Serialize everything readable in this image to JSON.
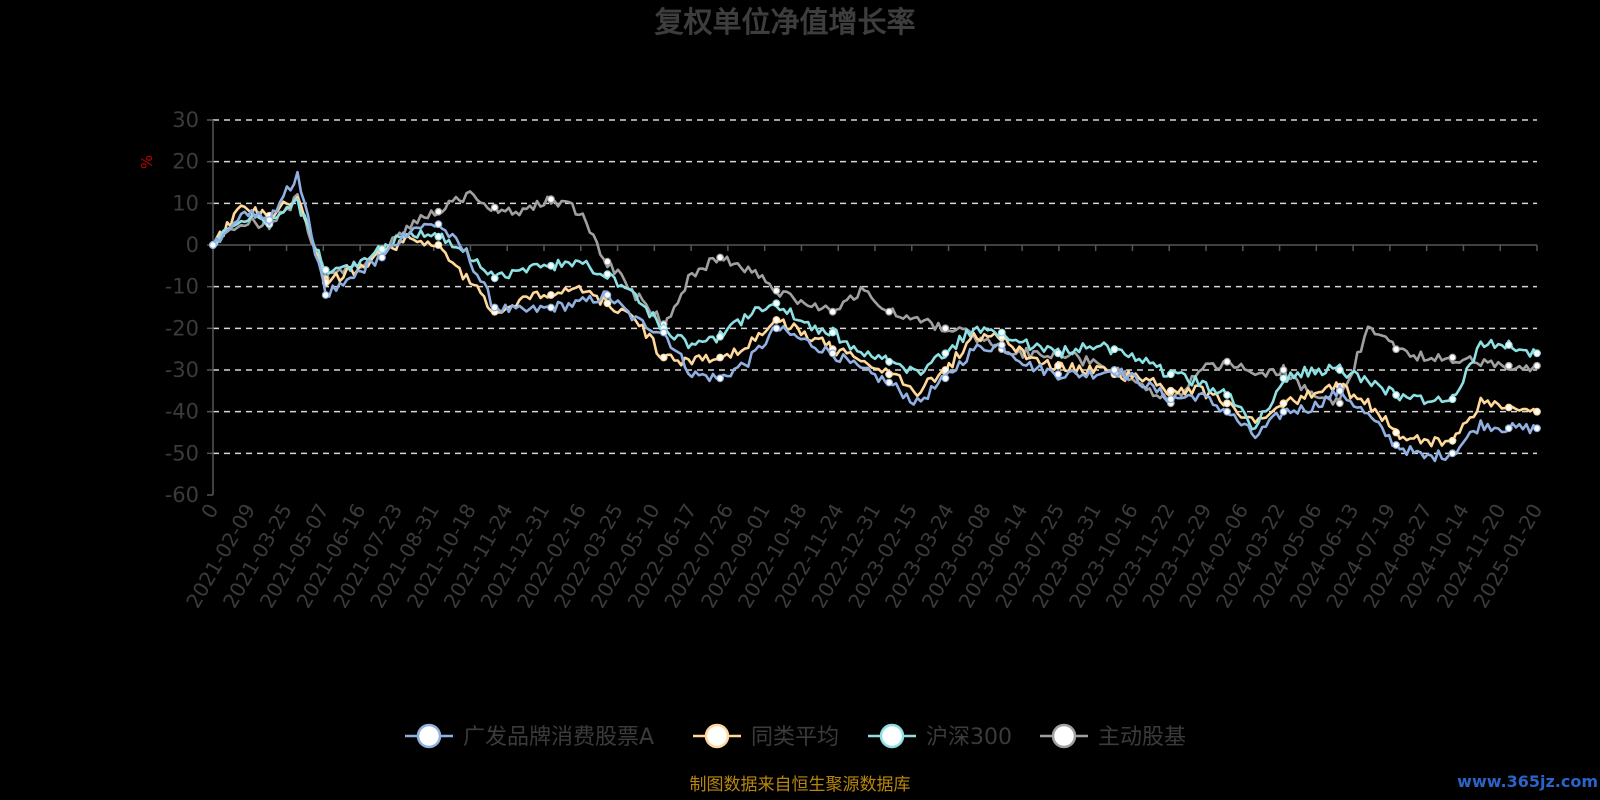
{
  "chart_data": {
    "type": "line",
    "title": "复权单位净值增长率",
    "ylabel": "%",
    "ylim": [
      -60,
      30
    ],
    "yticks": [
      30,
      20,
      10,
      0,
      -10,
      -20,
      -30,
      -40,
      -50,
      -60
    ],
    "grid": true,
    "legend_position": "bottom",
    "xticks": [
      "0",
      "2021-02-09",
      "2021-03-25",
      "2021-05-07",
      "2021-06-16",
      "2021-07-23",
      "2021-08-31",
      "2021-10-18",
      "2021-11-24",
      "2021-12-31",
      "2022-02-16",
      "2022-03-25",
      "2022-05-10",
      "2022-06-17",
      "2022-07-26",
      "2022-09-01",
      "2022-10-18",
      "2022-11-24",
      "2022-12-31",
      "2023-02-15",
      "2023-03-24",
      "2023-05-08",
      "2023-06-14",
      "2023-07-25",
      "2023-08-31",
      "2023-10-16",
      "2023-11-22",
      "2023-12-29",
      "2024-02-06",
      "2024-03-22",
      "2024-05-06",
      "2024-06-13",
      "2024-07-19",
      "2024-08-27",
      "2024-10-14",
      "2024-11-20",
      "2025-01-20"
    ],
    "series": [
      {
        "name": "广发品牌消费股票A",
        "color": "#8fb0e0",
        "values": [
          0,
          8,
          6,
          17,
          -12,
          -7,
          -3,
          4,
          5,
          -2,
          -15,
          -16,
          -15,
          -14,
          -12,
          -18,
          -21,
          -31,
          -32,
          -28,
          -20,
          -23,
          -26,
          -30,
          -33,
          -38,
          -32,
          -25,
          -24,
          -29,
          -31,
          -31,
          -30,
          -33,
          -37,
          -36,
          -40,
          -46,
          -40,
          -39,
          -35,
          -41,
          -48,
          -51,
          -50,
          -43,
          -44,
          -44
        ]
      },
      {
        "name": "同类平均",
        "color": "#ffd89a",
        "values": [
          0,
          9,
          7,
          12,
          -9,
          -6,
          -2,
          2,
          0,
          -8,
          -16,
          -13,
          -12,
          -10,
          -14,
          -18,
          -27,
          -28,
          -27,
          -24,
          -18,
          -21,
          -25,
          -28,
          -31,
          -35,
          -30,
          -22,
          -22,
          -27,
          -29,
          -30,
          -31,
          -32,
          -35,
          -35,
          -38,
          -43,
          -38,
          -36,
          -34,
          -38,
          -45,
          -47,
          -47,
          -38,
          -39,
          -40
        ]
      },
      {
        "name": "沪深300",
        "color": "#8ee0e4",
        "values": [
          0,
          7,
          5,
          10,
          -6,
          -5,
          -1,
          3,
          2,
          -2,
          -8,
          -6,
          -5,
          -4,
          -7,
          -12,
          -20,
          -24,
          -22,
          -17,
          -14,
          -19,
          -21,
          -26,
          -28,
          -31,
          -26,
          -20,
          -21,
          -24,
          -26,
          -24,
          -25,
          -28,
          -31,
          -33,
          -36,
          -44,
          -32,
          -30,
          -30,
          -33,
          -36,
          -37,
          -37,
          -24,
          -24,
          -26
        ]
      },
      {
        "name": "主动股基",
        "color": "#a0a0a0",
        "values": [
          0,
          6,
          5,
          11,
          -8,
          -5,
          -2,
          5,
          8,
          12,
          9,
          8,
          11,
          8,
          -4,
          -12,
          -19,
          -7,
          -3,
          -6,
          -11,
          -14,
          -16,
          -11,
          -16,
          -18,
          -20,
          -22,
          -25,
          -26,
          -26,
          -28,
          -30,
          -34,
          -38,
          -30,
          -28,
          -31,
          -30,
          -36,
          -38,
          -20,
          -25,
          -27,
          -27,
          -28,
          -29,
          -29
        ]
      }
    ]
  },
  "footer": {
    "source": "制图数据来自恒生聚源数据库",
    "watermark": "www.365jz.com"
  }
}
